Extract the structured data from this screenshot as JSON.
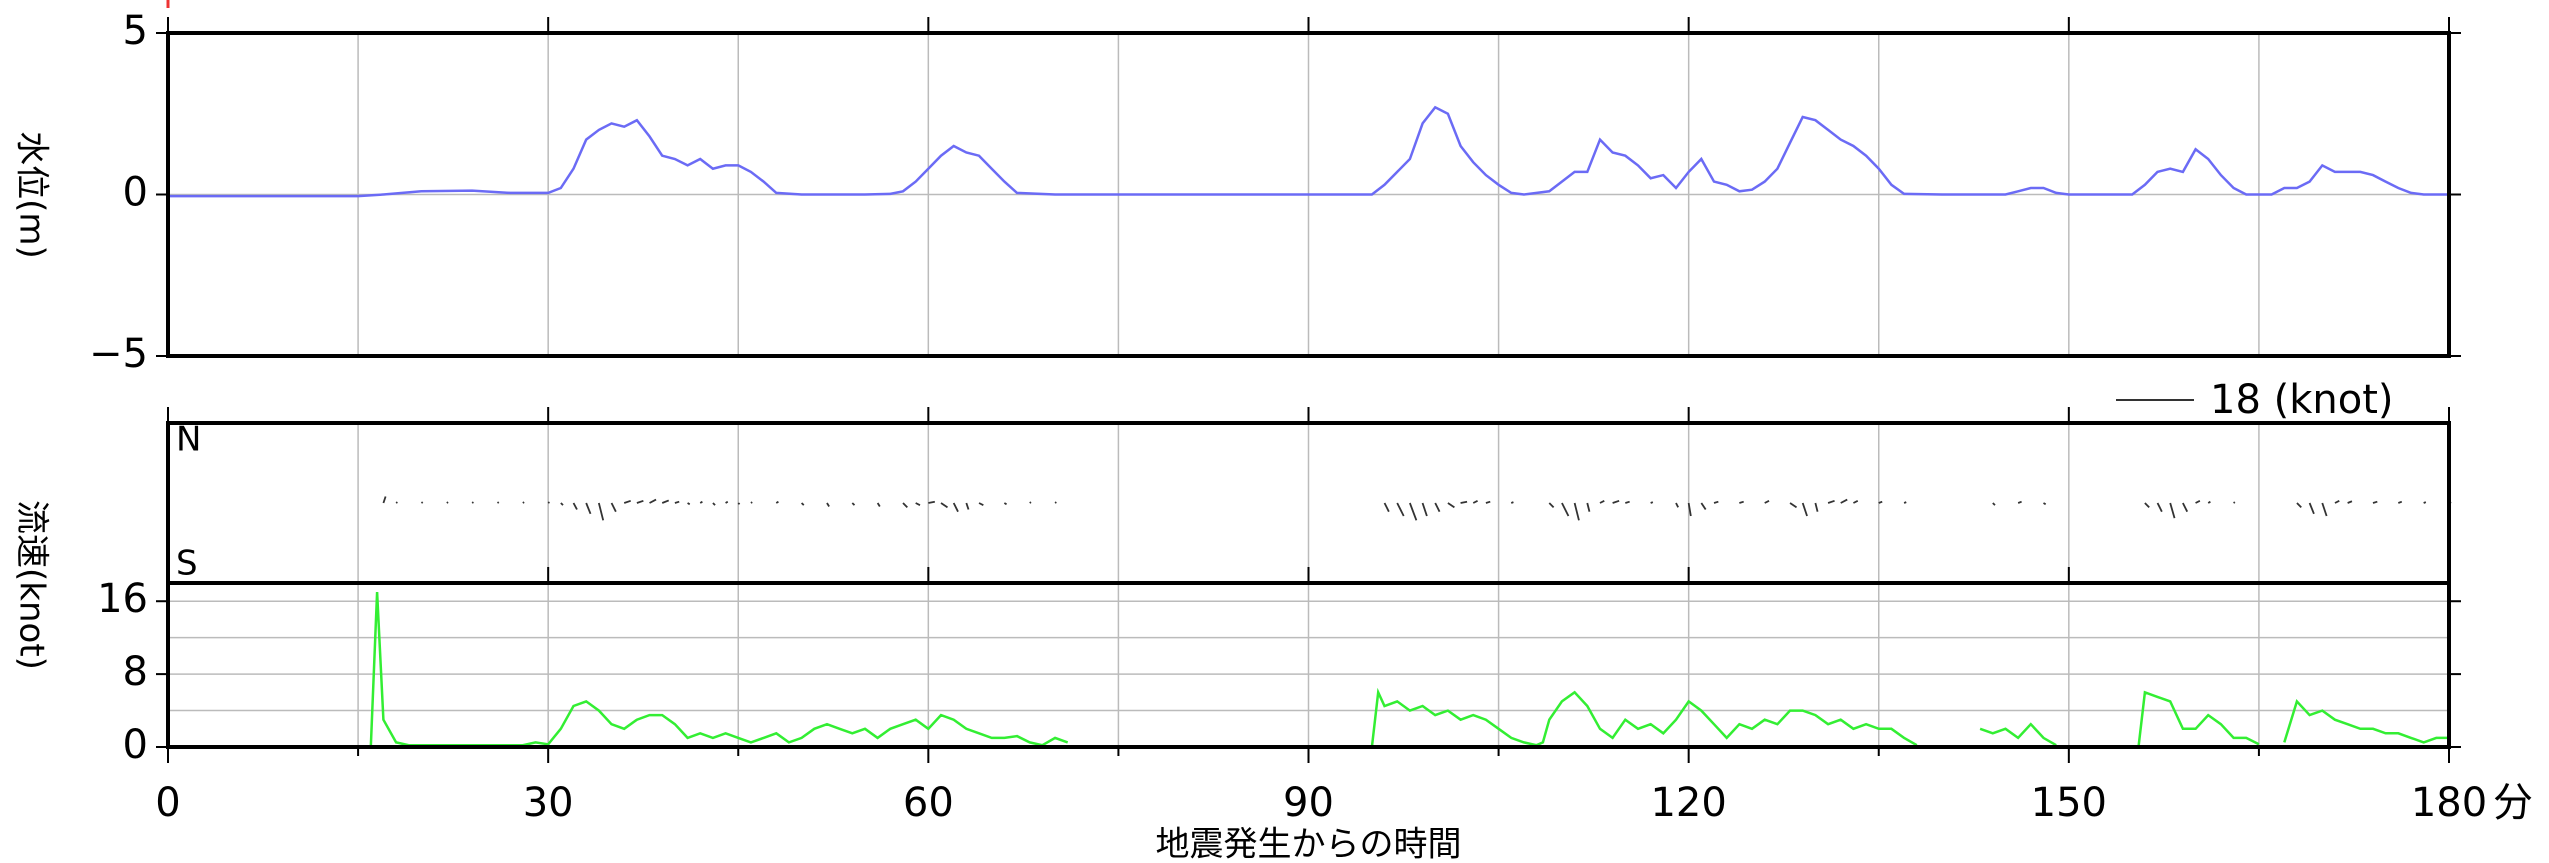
{
  "chart_data": [
    {
      "type": "line",
      "y_label": "水位(m)",
      "color": "#6b6bf5",
      "ylim": [
        -5,
        5
      ],
      "yticks": [
        5,
        0,
        {
          "value": -5,
          "label": "−5"
        }
      ],
      "zero_line": 0,
      "x": [
        0,
        5,
        10,
        15,
        17,
        20,
        24,
        27,
        30,
        31,
        32,
        33,
        34,
        35,
        36,
        37,
        38,
        39,
        40,
        41,
        42,
        43,
        44,
        45,
        46,
        47,
        48,
        50,
        55,
        57,
        58,
        59,
        60,
        61,
        62,
        63,
        64,
        65,
        66,
        67,
        70,
        80,
        90,
        95,
        96,
        97,
        98,
        99,
        100,
        101,
        102,
        103,
        104,
        105,
        106,
        107,
        109,
        110,
        111,
        112,
        113,
        114,
        115,
        116,
        117,
        118,
        119,
        120,
        121,
        122,
        123,
        124,
        125,
        126,
        127,
        128,
        129,
        130,
        131,
        132,
        133,
        134,
        135,
        136,
        137,
        140,
        145,
        146,
        147,
        148,
        149,
        150,
        155,
        156,
        157,
        158,
        159,
        160,
        161,
        162,
        163,
        164,
        166,
        167,
        168,
        169,
        170,
        171,
        172,
        173,
        174,
        175,
        176,
        177,
        178,
        180
      ],
      "values": [
        -0.05,
        -0.05,
        -0.05,
        -0.05,
        0,
        0.1,
        0.12,
        0.05,
        0.05,
        0.2,
        0.8,
        1.7,
        2.0,
        2.2,
        2.1,
        2.3,
        1.8,
        1.2,
        1.1,
        0.9,
        1.1,
        0.8,
        0.9,
        0.9,
        0.7,
        0.4,
        0.05,
        0,
        0,
        0.02,
        0.1,
        0.4,
        0.8,
        1.2,
        1.5,
        1.3,
        1.2,
        0.8,
        0.4,
        0.05,
        0,
        0,
        0,
        0,
        0.3,
        0.7,
        1.1,
        2.2,
        2.7,
        2.5,
        1.5,
        1.0,
        0.6,
        0.3,
        0.05,
        0,
        0.1,
        0.4,
        0.7,
        0.7,
        1.7,
        1.3,
        1.2,
        0.9,
        0.5,
        0.6,
        0.2,
        0.7,
        1.1,
        0.4,
        0.3,
        0.1,
        0.15,
        0.4,
        0.8,
        1.6,
        2.4,
        2.3,
        2.0,
        1.7,
        1.5,
        1.2,
        0.8,
        0.3,
        0.02,
        0,
        0,
        0.1,
        0.2,
        0.2,
        0.05,
        0,
        0,
        0.3,
        0.7,
        0.8,
        0.7,
        1.4,
        1.1,
        0.6,
        0.2,
        0,
        0,
        0.2,
        0.2,
        0.4,
        0.9,
        0.7,
        0.7,
        0.7,
        0.6,
        0.4,
        0.2,
        0.05,
        0,
        0
      ]
    },
    {
      "type": "vector",
      "north_label": "N",
      "south_label": "S",
      "color": "#333333",
      "scale": {
        "value": 18,
        "label": "18 (knot)"
      },
      "x": [
        17,
        18,
        20,
        22,
        24,
        26,
        28,
        30,
        31,
        32,
        33,
        34,
        35,
        36,
        37,
        38,
        39,
        40,
        41,
        42,
        43,
        44,
        45,
        46,
        48,
        50,
        52,
        54,
        56,
        58,
        59,
        60,
        61,
        62,
        63,
        64,
        66,
        68,
        70,
        96,
        97,
        98,
        99,
        100,
        101,
        102,
        103,
        104,
        106,
        109,
        110,
        111,
        112,
        113,
        114,
        115,
        117,
        119,
        120,
        121,
        122,
        124,
        126,
        128,
        129,
        130,
        131,
        132,
        133,
        135,
        137,
        144,
        146,
        148,
        156,
        157,
        158,
        159,
        160,
        161,
        163,
        168,
        169,
        170,
        171,
        172,
        174,
        176,
        178,
        180
      ],
      "u": [
        0.5,
        0.3,
        0.3,
        0.3,
        0.3,
        0.3,
        0.3,
        0.3,
        0.5,
        0.8,
        1,
        1,
        1,
        1.5,
        1.5,
        1.5,
        1.5,
        1,
        0.5,
        0.5,
        0.5,
        0.5,
        0.3,
        0.3,
        0.5,
        0.5,
        0.5,
        0.5,
        0.5,
        1,
        1,
        1.5,
        1.5,
        1,
        0.5,
        1,
        0.5,
        0.3,
        0.3,
        1,
        1.5,
        1.5,
        1,
        1,
        1.5,
        1.5,
        1,
        1,
        0.5,
        1,
        1.5,
        1,
        0.5,
        1,
        1.5,
        1,
        0.5,
        0.5,
        0.5,
        1,
        1,
        1,
        1,
        1.5,
        1,
        0.5,
        1.5,
        1.5,
        1,
        0.8,
        0.5,
        0.5,
        0.8,
        0.5,
        1,
        1,
        1,
        1,
        1,
        0.5,
        0.3,
        1,
        1,
        1,
        1,
        1,
        1,
        0.8,
        0.5,
        0.5
      ],
      "v": [
        1.5,
        0.2,
        0.2,
        0.2,
        0.2,
        0.2,
        0.2,
        0.2,
        -0.5,
        -1.5,
        -2.5,
        -4,
        -2,
        0.5,
        0.5,
        0.8,
        0.6,
        0.3,
        -0.3,
        0.3,
        -0.5,
        0.3,
        -0.3,
        0.2,
        0.3,
        -0.5,
        -0.8,
        -0.5,
        -0.8,
        -1,
        -0.5,
        0.3,
        -1,
        -2,
        -1.5,
        -0.5,
        -0.3,
        0.2,
        0.2,
        -2,
        -3,
        -4,
        -3,
        -2,
        -1,
        0.3,
        0.5,
        0.3,
        0.2,
        -1,
        -3,
        -4,
        -2,
        0.5,
        0.5,
        0.3,
        0.2,
        -1,
        -3,
        -1.5,
        0.3,
        0.3,
        0.5,
        -1,
        -3,
        -2,
        0.5,
        0.8,
        0.5,
        0.3,
        0.2,
        -0.5,
        0.3,
        -0.3,
        -1,
        -2,
        -3.5,
        -2,
        0.5,
        0.3,
        0.2,
        -1,
        -2.5,
        -3,
        0.5,
        0.4,
        0.3,
        0.3,
        0.2,
        0.2
      ]
    },
    {
      "type": "line",
      "y_label": "流速(knot)",
      "x_label": "地震発生からの時間",
      "x_unit": "分",
      "color": "#33ee33",
      "xlim": [
        0,
        180
      ],
      "xticks": [
        0,
        30,
        60,
        90,
        120,
        150,
        180
      ],
      "minor_xticks": [
        15,
        45,
        75,
        105,
        135,
        165
      ],
      "ylim": [
        0,
        18
      ],
      "yticks": [
        0,
        8,
        16
      ],
      "minor_yticks": [
        4,
        12
      ],
      "grid": true,
      "x": [
        0,
        16,
        16.5,
        17,
        18,
        19,
        28,
        29,
        30,
        31,
        32,
        33,
        34,
        35,
        36,
        37,
        38,
        39,
        40,
        41,
        42,
        43,
        44,
        45,
        46,
        47,
        48,
        49,
        50,
        51,
        52,
        53,
        54,
        55,
        56,
        57,
        58,
        59,
        60,
        61,
        62,
        63,
        64,
        65,
        66,
        67,
        68,
        69,
        70,
        71,
        72,
        95,
        95.5,
        96,
        97,
        98,
        99,
        100,
        101,
        102,
        103,
        104,
        105,
        106,
        107,
        108,
        108.5,
        109,
        110,
        111,
        112,
        113,
        114,
        115,
        116,
        117,
        118,
        119,
        120,
        121,
        122,
        123,
        124,
        125,
        126,
        127,
        128,
        129,
        130,
        131,
        132,
        133,
        134,
        135,
        136,
        137,
        138,
        139,
        143,
        144,
        145,
        146,
        147,
        148,
        149,
        150,
        155.5,
        156,
        157,
        158,
        159,
        160,
        161,
        162,
        163,
        164,
        165,
        166,
        167,
        168,
        169,
        170,
        171,
        172,
        173,
        174,
        175,
        176,
        177,
        178,
        179,
        180
      ],
      "values": [
        0,
        0,
        17,
        3,
        0.5,
        0.2,
        0.2,
        0.5,
        0.3,
        2,
        4.5,
        5,
        4,
        2.5,
        2,
        3,
        3.5,
        3.5,
        2.5,
        1,
        1.5,
        1,
        1.5,
        1,
        0.5,
        1,
        1.5,
        0.5,
        1,
        2,
        2.5,
        2,
        1.5,
        2,
        1,
        2,
        2.5,
        3,
        2,
        3.5,
        3,
        2,
        1.5,
        1,
        1,
        1.2,
        0.5,
        0.2,
        1,
        0.5,
        null,
        0,
        6,
        4.5,
        5,
        4,
        4.5,
        3.5,
        4,
        3,
        3.5,
        3,
        2,
        1,
        0.5,
        0.2,
        0.5,
        3,
        5,
        6,
        4.5,
        2,
        1,
        3,
        2,
        2.5,
        1.5,
        3,
        5,
        4,
        2.5,
        1,
        2.5,
        2,
        3,
        2.5,
        4,
        4,
        3.5,
        2.5,
        3,
        2,
        2.5,
        2,
        2,
        1,
        0.2,
        null,
        2,
        1.5,
        2,
        1,
        2.5,
        1,
        0.2,
        null,
        0,
        6,
        5.5,
        5,
        2,
        2,
        3.5,
        2.5,
        1,
        1,
        0.3,
        null,
        0.5,
        5,
        3.5,
        4,
        3,
        2.5,
        2,
        2,
        1.5,
        1.5,
        1,
        0.5,
        1,
        1
      ]
    }
  ]
}
